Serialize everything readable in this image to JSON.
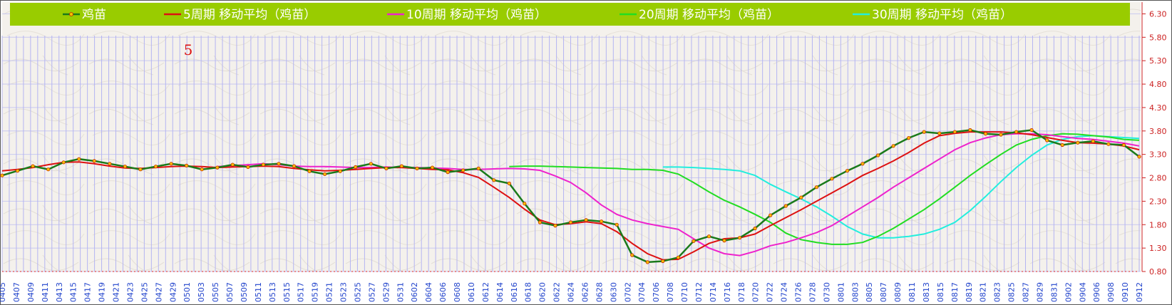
{
  "chart_data": {
    "type": "line",
    "ylim": [
      0.8,
      6.55
    ],
    "y_ticks": [
      0.8,
      1.3,
      1.8,
      2.3,
      2.8,
      3.3,
      3.8,
      4.3,
      4.8,
      5.3,
      5.8,
      6.3
    ],
    "y_tick_labels": [
      "0.80",
      "1.30",
      "1.80",
      "2.30",
      "2.80",
      "3.30",
      "3.80",
      "4.30",
      "4.80",
      "5.30",
      "5.80",
      "6.30"
    ],
    "x_labels": [
      "0405",
      "0407",
      "0409",
      "0411",
      "0413",
      "0415",
      "0417",
      "0419",
      "0421",
      "0423",
      "0425",
      "0427",
      "0429",
      "0501",
      "0503",
      "0505",
      "0507",
      "0509",
      "0511",
      "0513",
      "0515",
      "0517",
      "0519",
      "0521",
      "0523",
      "0525",
      "0527",
      "0529",
      "0531",
      "0602",
      "0604",
      "0606",
      "0608",
      "0610",
      "0612",
      "0614",
      "0616",
      "0618",
      "0620",
      "0622",
      "0624",
      "0626",
      "0628",
      "0630",
      "0702",
      "0704",
      "0706",
      "0708",
      "0710",
      "0712",
      "0714",
      "0716",
      "0718",
      "0720",
      "0722",
      "0724",
      "0726",
      "0728",
      "0730",
      "0801",
      "0803",
      "0805",
      "0807",
      "0809",
      "0811",
      "0813",
      "0815",
      "0817",
      "0819",
      "0821",
      "0823",
      "0825",
      "0827",
      "0829",
      "0831",
      "0902",
      "0904",
      "0906",
      "0908",
      "0910",
      "0912"
    ],
    "annotation": "5",
    "legend_position": "top",
    "series": [
      {
        "name": "鸡苗",
        "color": "#1a7a1a",
        "values": [
          2.85,
          2.95,
          3.05,
          2.98,
          3.13,
          3.2,
          3.16,
          3.1,
          3.04,
          2.98,
          3.04,
          3.1,
          3.06,
          2.98,
          3.02,
          3.08,
          3.03,
          3.08,
          3.1,
          3.05,
          2.94,
          2.88,
          2.94,
          3.03,
          3.1,
          3.0,
          3.05,
          3.0,
          3.02,
          2.92,
          2.96,
          3.0,
          2.75,
          2.68,
          2.25,
          1.85,
          1.78,
          1.85,
          1.9,
          1.87,
          1.8,
          1.15,
          1.0,
          1.02,
          1.1,
          1.45,
          1.55,
          1.46,
          1.52,
          1.72,
          2.0,
          2.2,
          2.38,
          2.6,
          2.78,
          2.95,
          3.1,
          3.28,
          3.48,
          3.65,
          3.78,
          3.75,
          3.78,
          3.82,
          3.74,
          3.72,
          3.78,
          3.82,
          3.6,
          3.5,
          3.55,
          3.58,
          3.52,
          3.5,
          3.25
        ]
      },
      {
        "name": "5周期 移动平均（鸡苗）",
        "color": "#dd1111",
        "values": [
          2.95,
          2.98,
          3.02,
          3.08,
          3.13,
          3.14,
          3.1,
          3.05,
          3.01,
          3.0,
          3.02,
          3.04,
          3.05,
          3.04,
          3.02,
          3.03,
          3.04,
          3.05,
          3.04,
          3.0,
          2.97,
          2.95,
          2.96,
          2.98,
          3.0,
          3.02,
          3.02,
          3.0,
          2.98,
          2.97,
          2.91,
          2.81,
          2.6,
          2.38,
          2.13,
          1.9,
          1.8,
          1.82,
          1.86,
          1.82,
          1.65,
          1.4,
          1.18,
          1.05,
          1.06,
          1.22,
          1.4,
          1.5,
          1.52,
          1.6,
          1.78,
          1.95,
          2.12,
          2.3,
          2.48,
          2.66,
          2.85,
          3.0,
          3.16,
          3.34,
          3.54,
          3.7,
          3.75,
          3.78,
          3.78,
          3.78,
          3.76,
          3.72,
          3.66,
          3.6,
          3.55,
          3.54,
          3.52,
          3.48,
          3.4
        ]
      },
      {
        "name": "10周期 移动平均（鸡苗）",
        "color": "#ee22cc",
        "values": [
          3.04,
          3.06,
          3.08,
          3.1,
          3.08,
          3.05,
          3.04,
          3.04,
          3.03,
          3.02,
          3.02,
          3.03,
          3.02,
          3.02,
          3.01,
          3.0,
          2.98,
          2.98,
          2.99,
          3.0,
          2.99,
          2.96,
          2.84,
          2.7,
          2.48,
          2.22,
          2.02,
          1.9,
          1.82,
          1.76,
          1.7,
          1.5,
          1.3,
          1.18,
          1.14,
          1.23,
          1.35,
          1.42,
          1.52,
          1.63,
          1.78,
          1.98,
          2.18,
          2.38,
          2.6,
          2.8,
          3.0,
          3.2,
          3.4,
          3.55,
          3.65,
          3.72,
          3.74,
          3.74,
          3.72,
          3.68,
          3.64,
          3.62,
          3.58,
          3.54,
          3.48
        ]
      },
      {
        "name": "20周期 移动平均（鸡苗）",
        "color": "#22dd22",
        "values": [
          3.04,
          3.05,
          3.05,
          3.04,
          3.03,
          3.02,
          3.01,
          3.0,
          2.98,
          2.98,
          2.96,
          2.88,
          2.7,
          2.5,
          2.32,
          2.18,
          2.02,
          1.85,
          1.62,
          1.48,
          1.42,
          1.38,
          1.38,
          1.42,
          1.55,
          1.72,
          1.92,
          2.12,
          2.35,
          2.6,
          2.85,
          3.08,
          3.3,
          3.5,
          3.62,
          3.7,
          3.74,
          3.73,
          3.7,
          3.67,
          3.62,
          3.6
        ]
      },
      {
        "name": "30周期 移动平均（鸡苗）",
        "color": "#22eedd",
        "values": [
          3.03,
          3.03,
          3.02,
          3.0,
          2.98,
          2.95,
          2.85,
          2.66,
          2.5,
          2.35,
          2.18,
          1.98,
          1.76,
          1.6,
          1.52,
          1.52,
          1.55,
          1.6,
          1.7,
          1.85,
          2.1,
          2.4,
          2.72,
          3.02,
          3.28,
          3.5,
          3.62,
          3.68,
          3.7,
          3.68,
          3.66,
          3.64
        ]
      }
    ]
  }
}
